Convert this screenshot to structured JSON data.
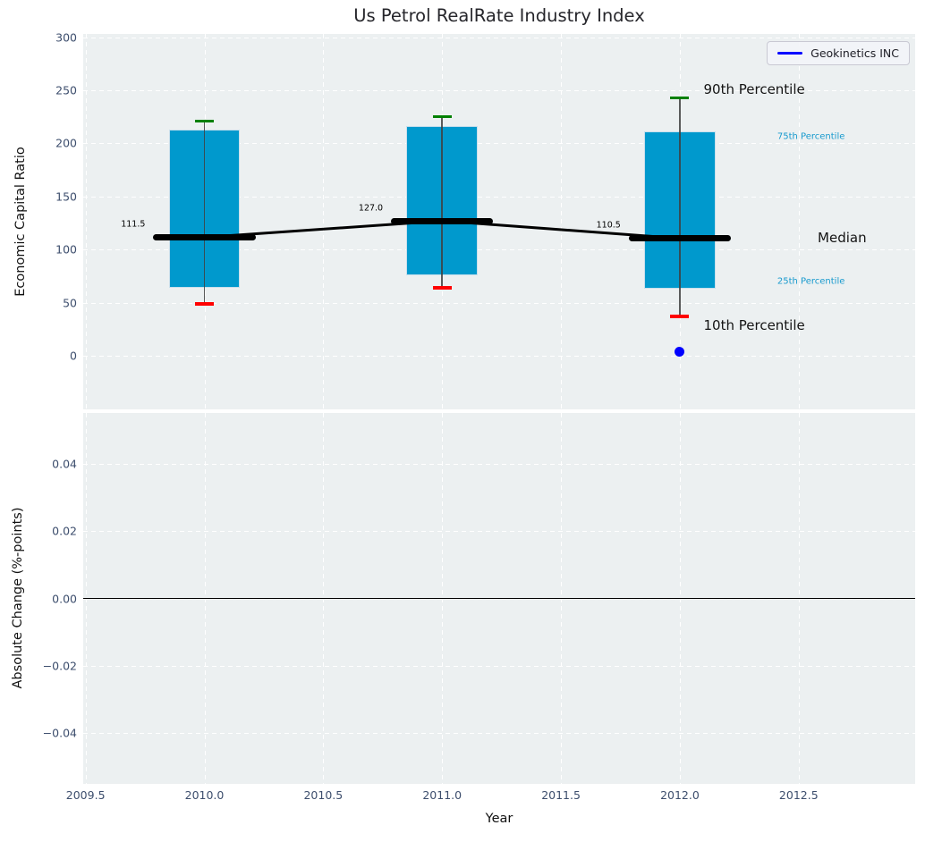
{
  "chart_data": {
    "type": "boxplot-timeseries",
    "title": "Us Petrol RealRate Industry Index",
    "xlabel": "Year",
    "xlim": [
      2009.49,
      2012.99
    ],
    "xticks": [
      2009.5,
      2010.0,
      2010.5,
      2011.0,
      2011.5,
      2012.0,
      2012.5
    ],
    "xtick_labels": [
      "2009.5",
      "2010.0",
      "2010.5",
      "2011.0",
      "2011.5",
      "2012.0",
      "2012.5"
    ],
    "grid": true,
    "legend_position": "upper right",
    "top_panel": {
      "ylabel": "Economic Capital Ratio",
      "ylim": [
        -50.5,
        303
      ],
      "yticks": [
        300,
        250,
        200,
        150,
        100,
        50,
        0
      ],
      "ytick_labels": [
        "300",
        "250",
        "200",
        "150",
        "100",
        "50",
        "0"
      ],
      "boxes": [
        {
          "year": 2010,
          "p10": 49,
          "p25": 64,
          "median": 111.5,
          "p75": 213,
          "p90": 221,
          "median_label": "111.5"
        },
        {
          "year": 2011,
          "p10": 64,
          "p25": 76,
          "median": 127.0,
          "p75": 216,
          "p90": 225,
          "median_label": "127.0"
        },
        {
          "year": 2012,
          "p10": 37,
          "p25": 63,
          "median": 110.5,
          "p75": 211,
          "p90": 243,
          "median_label": "110.5"
        }
      ],
      "company_series": {
        "name": "Geokinetics INC",
        "points": [
          {
            "x": 2012,
            "y": 4
          }
        ]
      },
      "annotations": [
        {
          "text": "90th Percentile",
          "x": 2012.1,
          "y": 251,
          "color": "#141414",
          "size": 15
        },
        {
          "text": "75th Percentile",
          "x": 2012.41,
          "y": 206,
          "color": "#189ace",
          "size": 10
        },
        {
          "text": "Median",
          "x": 2012.58,
          "y": 111,
          "color": "#141414",
          "size": 15
        },
        {
          "text": "25th Percentile",
          "x": 2012.41,
          "y": 70,
          "color": "#189ace",
          "size": 10
        },
        {
          "text": "10th Percentile",
          "x": 2012.1,
          "y": 29,
          "color": "#141414",
          "size": 15
        }
      ],
      "colors": {
        "box_fill": "#0099cd",
        "box_edge": "#c9dfec",
        "whisker": "#3f3f3f",
        "p90_cap": "#008000",
        "p10_cap": "#ff0000",
        "median_line": "#000000",
        "company": "#0000ff"
      }
    },
    "bottom_panel": {
      "ylabel": "Absolute Change (%-points)",
      "ylim": [
        -0.0553,
        0.0553
      ],
      "yticks": [
        0.04,
        0.02,
        0.0,
        -0.02,
        -0.04
      ],
      "ytick_labels": [
        "0.04",
        "0.02",
        "0.00",
        "−0.02",
        "−0.04"
      ],
      "zero_line": 0
    }
  }
}
